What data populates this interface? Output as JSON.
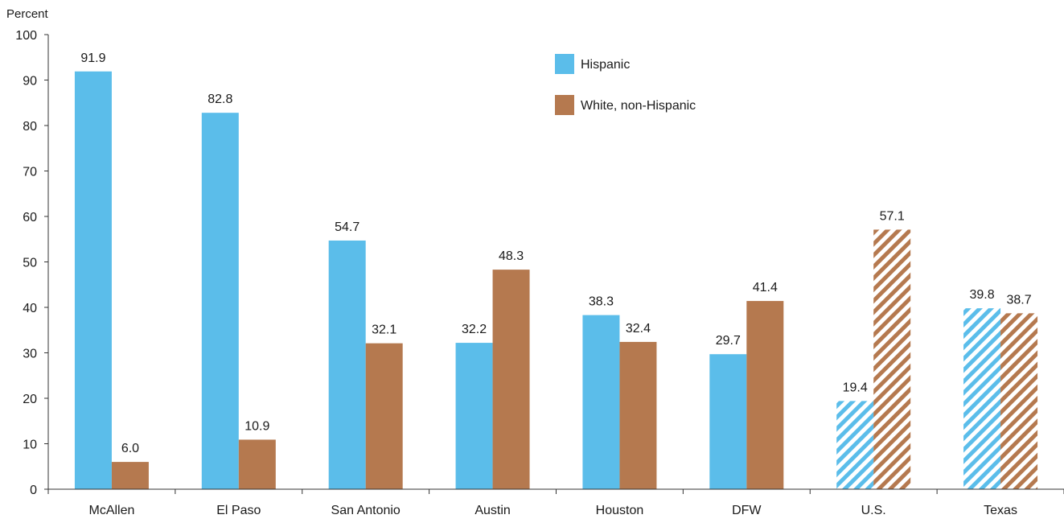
{
  "chart_data": {
    "type": "bar",
    "ylabel": "Percent",
    "ylim": [
      0,
      100
    ],
    "yticks": [
      0,
      10,
      20,
      30,
      40,
      50,
      60,
      70,
      80,
      90,
      100
    ],
    "categories": [
      "McAllen",
      "El Paso",
      "San Antonio",
      "Austin",
      "Houston",
      "DFW",
      "U.S.",
      "Texas"
    ],
    "hatched_categories": [
      "U.S.",
      "Texas"
    ],
    "legend_position": "top-center",
    "grid": false,
    "series": [
      {
        "name": "Hispanic",
        "color": "#5bbdea",
        "values": [
          91.9,
          82.8,
          54.7,
          32.2,
          38.3,
          29.7,
          19.4,
          39.8
        ],
        "labels": [
          "91.9",
          "82.8",
          "54.7",
          "32.2",
          "38.3",
          "29.7",
          "19.4",
          "39.8"
        ]
      },
      {
        "name": "White, non-Hispanic",
        "color": "#b5794f",
        "values": [
          6.0,
          10.9,
          32.1,
          48.3,
          32.4,
          41.4,
          57.1,
          38.7
        ],
        "labels": [
          "6.0",
          "10.9",
          "32.1",
          "48.3",
          "32.4",
          "41.4",
          "57.1",
          "38.7"
        ]
      }
    ]
  }
}
